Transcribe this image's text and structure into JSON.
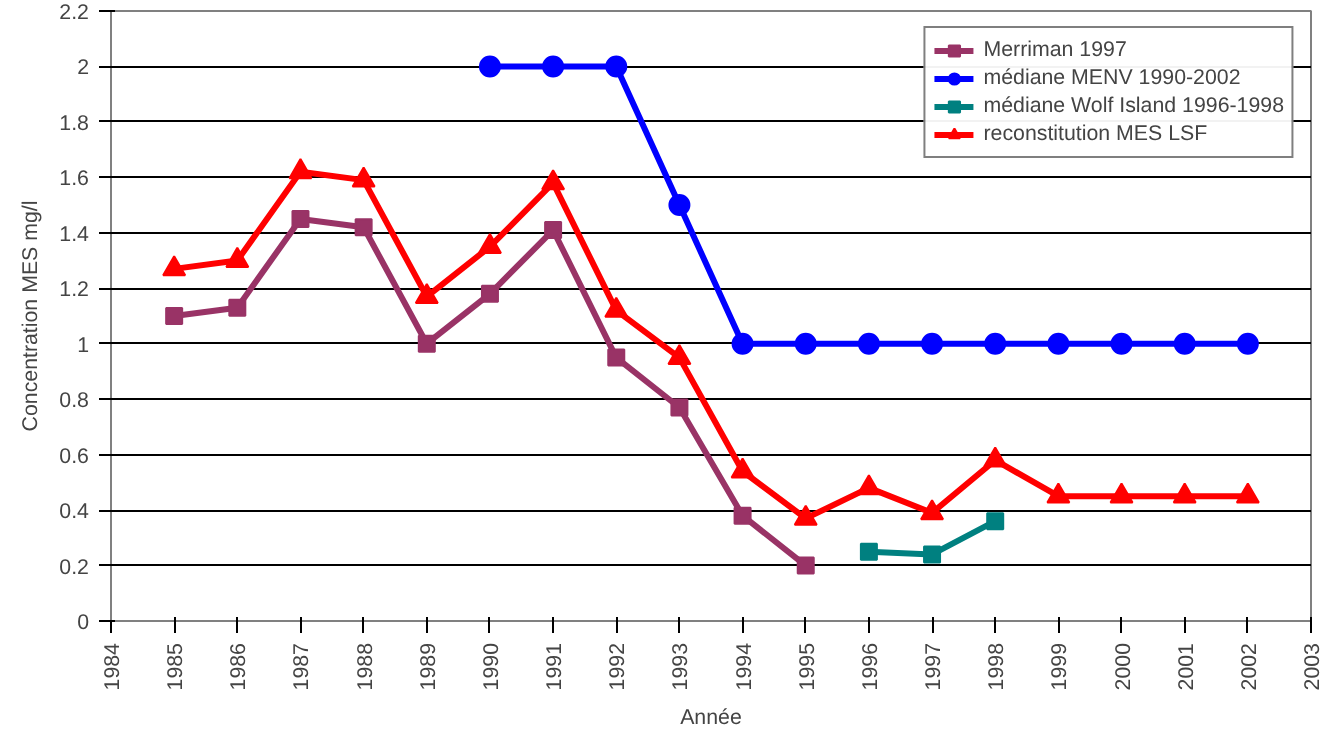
{
  "chart_data": {
    "type": "line",
    "xlabel": "Année",
    "ylabel": "Concentration MES mg/l",
    "xlim": [
      1984,
      2003
    ],
    "xticks": [
      1984,
      1985,
      1986,
      1987,
      1988,
      1989,
      1990,
      1991,
      1992,
      1993,
      1994,
      1995,
      1996,
      1997,
      1998,
      1999,
      2000,
      2001,
      2002,
      2003
    ],
    "ylim": [
      0,
      2.2
    ],
    "yticks": [
      0,
      0.2,
      0.4,
      0.6,
      0.8,
      1,
      1.2,
      1.4,
      1.6,
      1.8,
      2,
      2.2
    ],
    "grid": "y",
    "legend": "top right",
    "line_style": "solid",
    "series": [
      {
        "name": "Merriman 1997",
        "color": "#993366",
        "marker": "square",
        "x": [
          1985,
          1986,
          1987,
          1988,
          1989,
          1990,
          1991,
          1992,
          1993,
          1994,
          1995
        ],
        "values": [
          1.1,
          1.13,
          1.45,
          1.42,
          1.0,
          1.18,
          1.41,
          0.95,
          0.77,
          0.38,
          0.2
        ]
      },
      {
        "name": "médiane MENV 1990-2002",
        "color": "#0000ff",
        "marker": "circle",
        "x": [
          1990,
          1991,
          1992,
          1993,
          1994,
          1995,
          1996,
          1997,
          1998,
          1999,
          2000,
          2001,
          2002
        ],
        "values": [
          2,
          2,
          2,
          1.5,
          1,
          1,
          1,
          1,
          1,
          1,
          1,
          1,
          1
        ]
      },
      {
        "name": "médiane Wolf Island 1996-1998",
        "color": "#008080",
        "marker": "square",
        "x": [
          1996,
          1997,
          1998
        ],
        "values": [
          0.25,
          0.24,
          0.36
        ]
      },
      {
        "name": "reconstitution MES LSF",
        "color": "#ff0000",
        "marker": "triangle",
        "x": [
          1985,
          1986,
          1987,
          1988,
          1989,
          1990,
          1991,
          1992,
          1993,
          1994,
          1995,
          1996,
          1997,
          1998,
          1999,
          2000,
          2001,
          2002
        ],
        "values": [
          1.27,
          1.3,
          1.62,
          1.59,
          1.17,
          1.35,
          1.58,
          1.12,
          0.95,
          0.54,
          0.37,
          0.48,
          0.39,
          0.58,
          0.45,
          0.45,
          0.45,
          0.45
        ]
      }
    ]
  }
}
